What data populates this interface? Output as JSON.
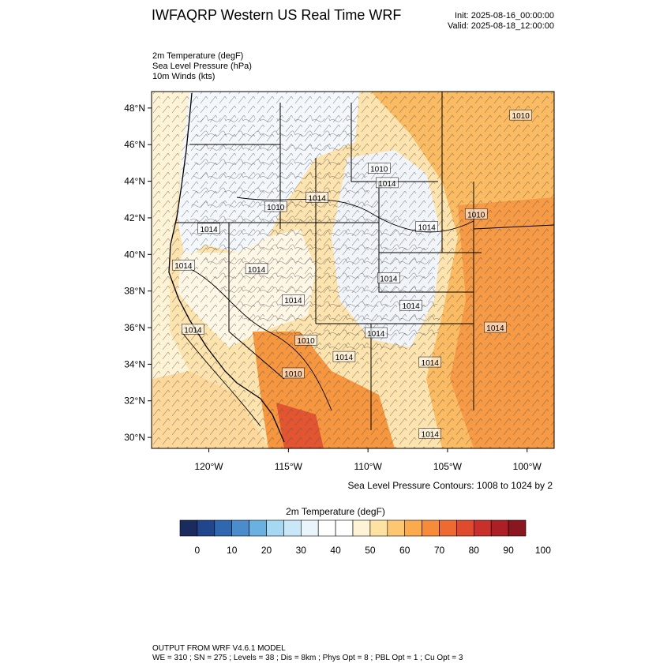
{
  "header": {
    "title": "IWFAQRP Western US Real Time WRF",
    "init": "Init: 2025-08-16_00:00:00",
    "valid": "Valid: 2025-08-18_12:00:00"
  },
  "variables": [
    "2m Temperature   (degF)",
    "Sea Level Pressure   (hPa)",
    "10m Winds   (kts)"
  ],
  "map": {
    "lat_labels": [
      "48°N",
      "46°N",
      "44°N",
      "42°N",
      "40°N",
      "38°N",
      "36°N",
      "34°N",
      "32°N",
      "30°N"
    ],
    "lon_labels": [
      "120°W",
      "115°W",
      "110°W",
      "105°W",
      "100°W"
    ],
    "lat_range": [
      29.4,
      48.9
    ],
    "lon_range": [
      -123.6,
      -98.3
    ],
    "isobar_labels": [
      {
        "text": "1010",
        "lon": -100.4,
        "lat": 47.6
      },
      {
        "text": "1010",
        "lon": -109.3,
        "lat": 44.7
      },
      {
        "text": "1014",
        "lon": -108.8,
        "lat": 43.9
      },
      {
        "text": "1010",
        "lon": -115.8,
        "lat": 42.6
      },
      {
        "text": "1014",
        "lon": -113.2,
        "lat": 43.1
      },
      {
        "text": "1010",
        "lon": -103.2,
        "lat": 42.2
      },
      {
        "text": "1014",
        "lon": -120.0,
        "lat": 41.4
      },
      {
        "text": "1014",
        "lon": -106.3,
        "lat": 41.5
      },
      {
        "text": "1014",
        "lon": -121.6,
        "lat": 39.4
      },
      {
        "text": "1014",
        "lon": -117.0,
        "lat": 39.2
      },
      {
        "text": "1014",
        "lon": -108.7,
        "lat": 38.7
      },
      {
        "text": "1014",
        "lon": -114.7,
        "lat": 37.5
      },
      {
        "text": "1014",
        "lon": -107.3,
        "lat": 37.2
      },
      {
        "text": "1014",
        "lon": -121.0,
        "lat": 35.9
      },
      {
        "text": "1014",
        "lon": -102.0,
        "lat": 36.0
      },
      {
        "text": "1014",
        "lon": -109.5,
        "lat": 35.7
      },
      {
        "text": "1010",
        "lon": -113.9,
        "lat": 35.3
      },
      {
        "text": "1014",
        "lon": -111.5,
        "lat": 34.4
      },
      {
        "text": "1014",
        "lon": -106.1,
        "lat": 34.1
      },
      {
        "text": "1010",
        "lon": -114.7,
        "lat": 33.5
      },
      {
        "text": "1014",
        "lon": -106.1,
        "lat": 30.2
      }
    ]
  },
  "contour_note": "Sea Level Pressure Contours: 1008 to 1024 by 2",
  "colorbar": {
    "title": "2m Temperature  (degF)",
    "ticks": [
      "0",
      "10",
      "20",
      "30",
      "40",
      "50",
      "60",
      "70",
      "80",
      "90",
      "100"
    ],
    "colors": [
      "#1a2b5e",
      "#22468e",
      "#2f67b0",
      "#4a8ccc",
      "#6ab0e0",
      "#a7d8f2",
      "#c9e7f6",
      "#e9f4fb",
      "#ffffff",
      "#ffffff",
      "#fef3d5",
      "#fde2a1",
      "#fdc771",
      "#fbab4d",
      "#f68c3a",
      "#ee6a30",
      "#e04b2d",
      "#c9302c",
      "#ad1f26",
      "#8a1620"
    ]
  },
  "footer": {
    "line1": "OUTPUT FROM WRF V4.6.1 MODEL",
    "line2": "WE = 310 ; SN = 275 ; Levels = 38 ; Dis = 8km ; Phys Opt = 8 ; PBL Opt = 1 ; Cu Opt = 3"
  }
}
